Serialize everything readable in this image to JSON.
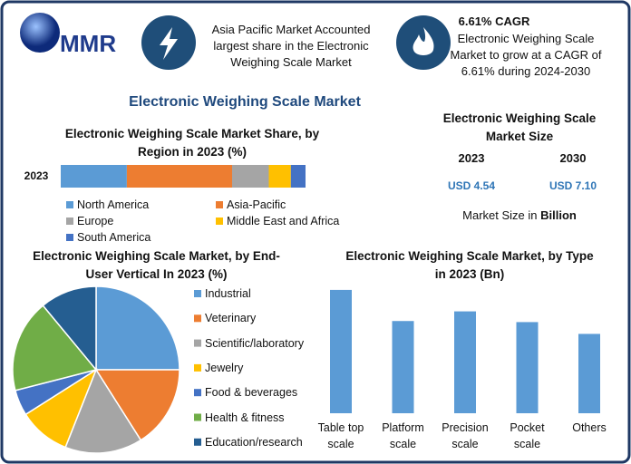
{
  "header": {
    "logo": "MMR",
    "highlight_1": "Asia Pacific Market Accounted largest share in the Electronic Weighing Scale Market",
    "highlight_2_title": "6.61% CAGR",
    "highlight_2": "Electronic Weighing Scale Market to grow at a CAGR of 6.61% during 2024-2030"
  },
  "title": "Electronic Weighing Scale Market",
  "market_size": {
    "title": "Electronic Weighing Scale Market Size",
    "years": [
      "2023",
      "2030"
    ],
    "values": [
      "USD 4.54",
      "USD 7.10"
    ],
    "note": "Market Size in",
    "unit": "Billion"
  },
  "chart_data": [
    {
      "type": "stacked_bar",
      "title": "Electronic Weighing Scale Market Share, by Region in 2023 (%)",
      "categories": [
        "2023"
      ],
      "xlim": [
        0,
        100
      ],
      "series": [
        {
          "name": "North America",
          "color": "#5b9bd5",
          "values": [
            27
          ]
        },
        {
          "name": "Asia-Pacific",
          "color": "#ed7d31",
          "values": [
            43
          ]
        },
        {
          "name": "Europe",
          "color": "#a5a5a5",
          "values": [
            15
          ]
        },
        {
          "name": "Middle East and Africa",
          "color": "#ffc000",
          "values": [
            9
          ]
        },
        {
          "name": "South America",
          "color": "#4472c4",
          "values": [
            6
          ]
        }
      ]
    },
    {
      "type": "pie",
      "title": "Electronic Weighing Scale Market, by End-User Vertical In 2023 (%)",
      "categories": [
        "Industrial",
        "Veterinary",
        "Scientific/laboratory",
        "Jewelry",
        "Food & beverages",
        "Health & fitness",
        "Education/research"
      ],
      "values": [
        25,
        16,
        15,
        10,
        5,
        18,
        11
      ],
      "colors": [
        "#5b9bd5",
        "#ed7d31",
        "#a5a5a5",
        "#ffc000",
        "#4472c4",
        "#70ad47",
        "#255e91"
      ]
    },
    {
      "type": "bar",
      "title": "Electronic Weighing Scale Market, by Type in 2023 (Bn)",
      "categories": [
        "Table top scale",
        "Platform scale",
        "Precision scale",
        "Pocket scale",
        "Others"
      ],
      "values": [
        1.15,
        0.86,
        0.95,
        0.85,
        0.74
      ],
      "color": "#5b9bd5",
      "ylim": [
        0,
        1.2
      ]
    }
  ]
}
